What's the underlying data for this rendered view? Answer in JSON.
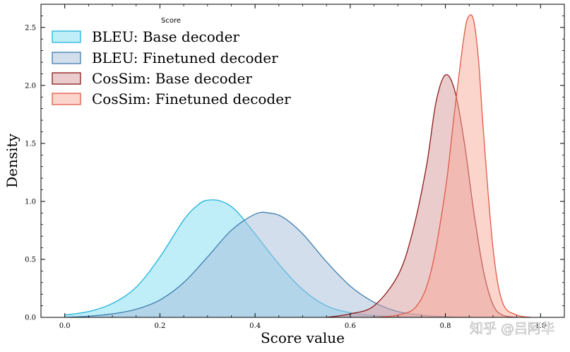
{
  "watermark": "知乎 @吕阿华",
  "chart_data": {
    "type": "area",
    "title": "",
    "xlabel": "Score value",
    "ylabel": "Density",
    "xlim": [
      -0.05,
      1.05
    ],
    "ylim": [
      0,
      2.7
    ],
    "x_ticks": [
      0.0,
      0.2,
      0.4,
      0.6,
      0.8,
      1.0
    ],
    "x_tick_labels": [
      "0.0",
      "0.2",
      "0.4",
      "0.6",
      "0.8",
      "1.0"
    ],
    "y_ticks": [
      0.0,
      0.5,
      1.0,
      1.5,
      2.0,
      2.5
    ],
    "y_tick_labels": [
      "0.0",
      "0.5",
      "1.0",
      "1.5",
      "2.0",
      "2.5"
    ],
    "legend": {
      "title": "Score",
      "placement": "upper-left"
    },
    "series": [
      {
        "name": "BLEU: Base decoder",
        "fill": "#7fdcf2",
        "stroke": "#1fb4dc",
        "x": [
          0.0,
          0.05,
          0.1,
          0.15,
          0.2,
          0.25,
          0.28,
          0.3,
          0.33,
          0.36,
          0.4,
          0.45,
          0.5,
          0.55,
          0.6,
          0.65,
          0.7,
          0.75,
          0.8
        ],
        "y": [
          0.02,
          0.05,
          0.12,
          0.26,
          0.52,
          0.84,
          0.97,
          1.01,
          1.0,
          0.92,
          0.72,
          0.46,
          0.24,
          0.1,
          0.04,
          0.015,
          0.005,
          0.002,
          0.0
        ]
      },
      {
        "name": "BLEU: Finetuned decoder",
        "fill": "#a7bed9",
        "stroke": "#3f7fb0",
        "x": [
          0.0,
          0.05,
          0.1,
          0.15,
          0.2,
          0.25,
          0.3,
          0.35,
          0.4,
          0.43,
          0.46,
          0.5,
          0.55,
          0.6,
          0.65,
          0.7,
          0.75,
          0.8,
          0.85
        ],
        "y": [
          0.0,
          0.01,
          0.03,
          0.07,
          0.15,
          0.3,
          0.52,
          0.75,
          0.89,
          0.9,
          0.86,
          0.72,
          0.48,
          0.27,
          0.13,
          0.05,
          0.02,
          0.005,
          0.0
        ]
      },
      {
        "name": "CosSim: Base decoder",
        "fill": "#d7999b",
        "stroke": "#8b1a1a",
        "x": [
          0.55,
          0.6,
          0.65,
          0.7,
          0.73,
          0.76,
          0.78,
          0.8,
          0.82,
          0.84,
          0.86,
          0.88,
          0.9,
          0.92,
          0.95
        ],
        "y": [
          0.0,
          0.03,
          0.1,
          0.36,
          0.72,
          1.3,
          1.85,
          2.09,
          1.95,
          1.5,
          0.9,
          0.4,
          0.11,
          0.02,
          0.0
        ]
      },
      {
        "name": "CosSim: Finetuned decoder",
        "fill": "#f7a99a",
        "stroke": "#e05a44",
        "x": [
          0.65,
          0.7,
          0.74,
          0.77,
          0.8,
          0.82,
          0.84,
          0.85,
          0.86,
          0.87,
          0.88,
          0.9,
          0.92,
          0.95,
          0.98
        ],
        "y": [
          0.0,
          0.02,
          0.1,
          0.4,
          1.1,
          1.8,
          2.45,
          2.6,
          2.55,
          2.2,
          1.6,
          0.6,
          0.13,
          0.02,
          0.0
        ]
      }
    ]
  }
}
